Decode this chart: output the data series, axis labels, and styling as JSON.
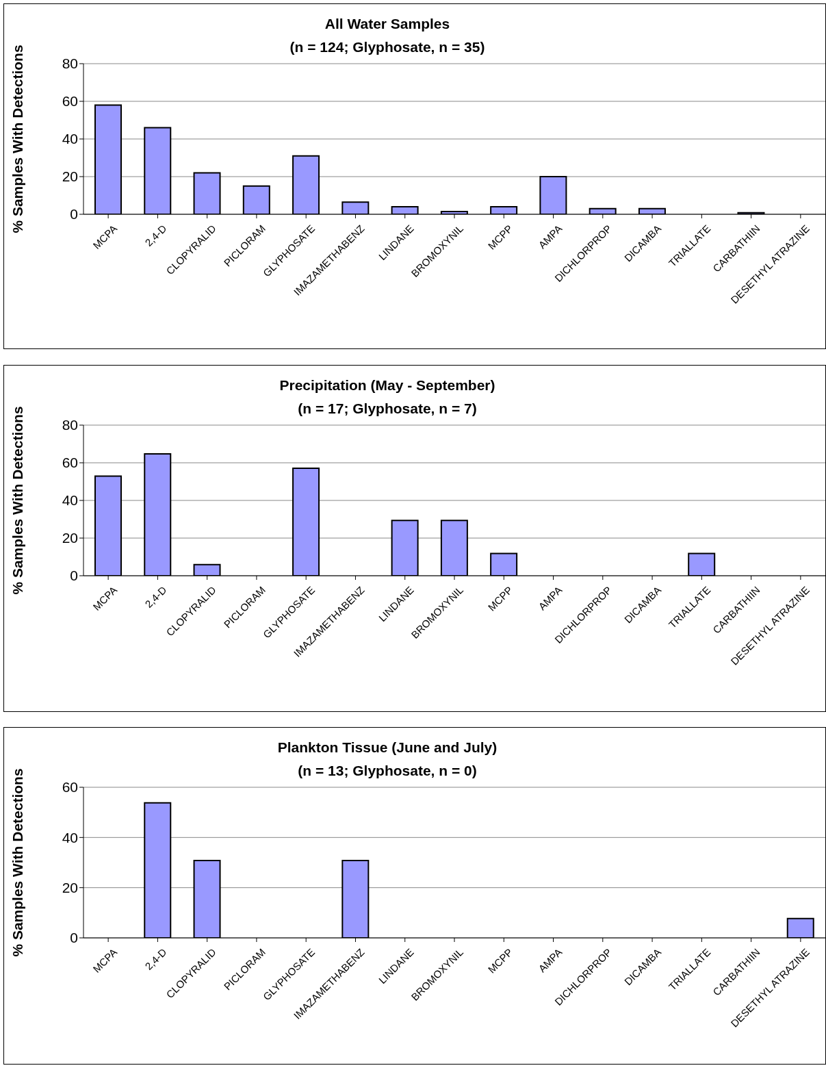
{
  "chart_data": [
    {
      "type": "bar",
      "title": "All Water Samples\n(n = 124; Glyphosate, n = 35)",
      "ylabel": "% Samples With Detections",
      "categories": [
        "MCPA",
        "2,4-D",
        "CLOPYRALID",
        "PICLORAM",
        "GLYPHOSATE",
        "IMAZAMETHABENZ",
        "LINDANE",
        "BROMOXYNIL",
        "MCPP",
        "AMPA",
        "DICHLORPROP",
        "DICAMBA",
        "TRIALLATE",
        "CARBATHIIN",
        "DESETHYL ATRAZINE"
      ],
      "values": [
        58,
        46,
        22,
        15,
        31,
        6.5,
        4,
        1.5,
        4,
        20,
        3,
        3,
        0,
        0.8,
        0
      ],
      "color": "#9999ff",
      "ylim": [
        0,
        80
      ],
      "yticks": [
        0,
        20,
        40,
        60,
        80
      ],
      "grid": "y",
      "legend": false
    },
    {
      "type": "bar",
      "title": "Precipitation (May - September)\n(n = 17; Glyphosate, n = 7)",
      "ylabel": "% Samples With Detections",
      "categories": [
        "MCPA",
        "2,4-D",
        "CLOPYRALID",
        "PICLORAM",
        "GLYPHOSATE",
        "IMAZAMETHABENZ",
        "LINDANE",
        "BROMOXYNIL",
        "MCPP",
        "AMPA",
        "DICHLORPROP",
        "DICAMBA",
        "TRIALLATE",
        "CARBATHIIN",
        "DESETHYL ATRAZINE"
      ],
      "values": [
        52.9,
        64.7,
        5.9,
        0,
        57.1,
        0,
        29.4,
        29.4,
        11.8,
        0,
        0,
        0,
        11.8,
        0,
        0
      ],
      "color": "#9999ff",
      "ylim": [
        0,
        80
      ],
      "yticks": [
        0,
        20,
        40,
        60,
        80
      ],
      "grid": "y",
      "legend": false
    },
    {
      "type": "bar",
      "title": "Plankton Tissue (June and July)\n(n = 13; Glyphosate, n = 0)",
      "ylabel": "% Samples With Detections",
      "categories": [
        "MCPA",
        "2,4-D",
        "CLOPYRALID",
        "PICLORAM",
        "GLYPHOSATE",
        "IMAZAMETHABENZ",
        "LINDANE",
        "BROMOXYNIL",
        "MCPP",
        "AMPA",
        "DICHLORPROP",
        "DICAMBA",
        "TRIALLATE",
        "CARBATHIIN",
        "DESETHYL ATRAZINE"
      ],
      "values": [
        0,
        53.8,
        30.8,
        0,
        0,
        30.8,
        0,
        0,
        0,
        0,
        0,
        0,
        0,
        0,
        7.7
      ],
      "color": "#9999ff",
      "ylim": [
        0,
        60
      ],
      "yticks": [
        0,
        20,
        40,
        60
      ],
      "grid": "y",
      "legend": false
    }
  ]
}
